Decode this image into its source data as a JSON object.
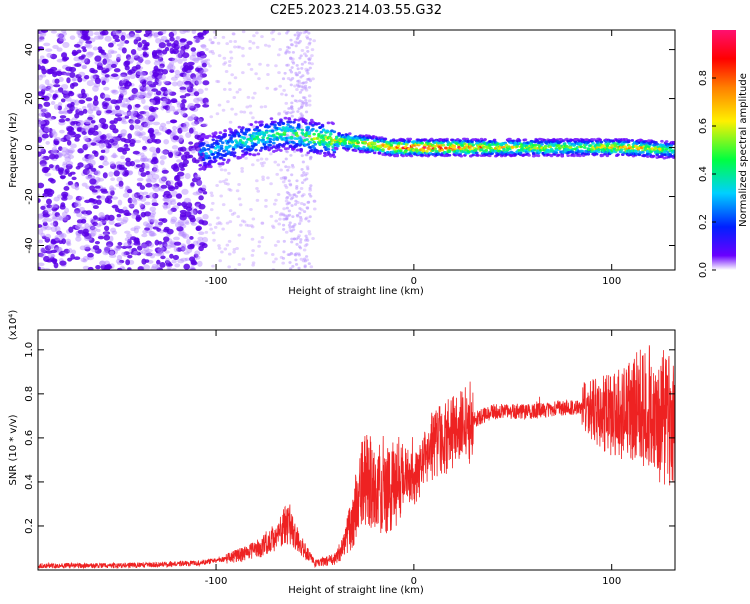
{
  "title": "C2E5.2023.214.03.55.G32",
  "chart_data": [
    {
      "type": "heatmap",
      "title": "C2E5.2023.214.03.55.G32",
      "xlabel": "Height of straight line (km)",
      "ylabel": "Frequency (Hz)",
      "xlim": [
        -190,
        132
      ],
      "ylim": [
        -50,
        48
      ],
      "xticks": [
        -100,
        0,
        100
      ],
      "yticks": [
        -40,
        -20,
        0,
        20,
        40
      ],
      "colorbar": {
        "label": "Normalized spectral amplitude",
        "range": [
          0,
          1
        ],
        "ticks": [
          0.0,
          0.2,
          0.4,
          0.6,
          0.8
        ],
        "colors": [
          "#ffffff",
          "#6a00ff",
          "#0020ff",
          "#00d0ff",
          "#00ff40",
          "#fff000",
          "#ff8000",
          "#ff0000",
          "#ff1070"
        ]
      },
      "signal_band": [
        {
          "x": -105,
          "f": -2,
          "amp": 0.3
        },
        {
          "x": -85,
          "f": 3,
          "amp": 0.4
        },
        {
          "x": -65,
          "f": 6,
          "amp": 0.45
        },
        {
          "x": -50,
          "f": 4,
          "amp": 0.55
        },
        {
          "x": -30,
          "f": 2,
          "amp": 0.7
        },
        {
          "x": -10,
          "f": 0,
          "amp": 0.85
        },
        {
          "x": 10,
          "f": 0,
          "amp": 0.9
        },
        {
          "x": 40,
          "f": 0,
          "amp": 0.7
        },
        {
          "x": 80,
          "f": 0,
          "amp": 0.55
        },
        {
          "x": 110,
          "f": 0,
          "amp": 0.75
        },
        {
          "x": 130,
          "f": -1,
          "amp": 0.5
        }
      ]
    },
    {
      "type": "line",
      "xlabel": "Height of straight line (km)",
      "ylabel": "SNR (10 * v/v)",
      "yscale_label": "(x10⁴)",
      "xlim": [
        -190,
        132
      ],
      "ylim": [
        0,
        1.09
      ],
      "xticks": [
        -100,
        0,
        100
      ],
      "yticks": [
        0.2,
        0.4,
        0.6,
        0.8,
        1.0
      ],
      "color": "#ee2222",
      "series": [
        {
          "name": "SNR",
          "x": [
            -190,
            -150,
            -110,
            -95,
            -80,
            -70,
            -63,
            -58,
            -50,
            -40,
            -35,
            -30,
            -25,
            -20,
            -15,
            -10,
            -5,
            0,
            5,
            10,
            20,
            30,
            40,
            50,
            60,
            70,
            80,
            90,
            100,
            110,
            120,
            130
          ],
          "y": [
            0.02,
            0.02,
            0.03,
            0.05,
            0.09,
            0.15,
            0.22,
            0.12,
            0.03,
            0.05,
            0.12,
            0.25,
            0.42,
            0.4,
            0.35,
            0.38,
            0.45,
            0.4,
            0.48,
            0.58,
            0.62,
            0.68,
            0.72,
            0.72,
            0.72,
            0.73,
            0.74,
            0.73,
            0.7,
            0.73,
            0.74,
            0.65
          ]
        }
      ]
    }
  ]
}
